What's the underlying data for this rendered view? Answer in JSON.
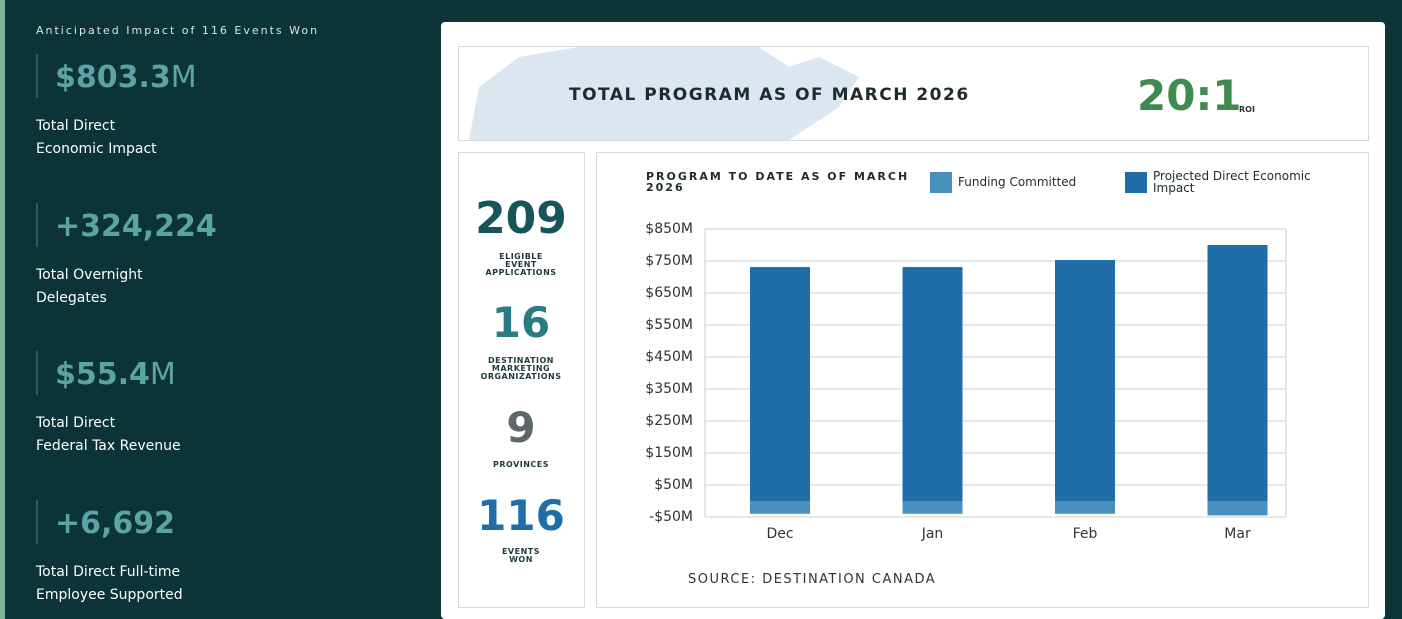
{
  "sidebar": {
    "heading": "Anticipated Impact of 116 Events Won",
    "stats": [
      {
        "value": "$803.3",
        "unit": "M",
        "label": [
          "Total Direct",
          "Economic Impact"
        ]
      },
      {
        "value": "+324,224",
        "label": [
          "Total Overnight",
          "Delegates"
        ]
      },
      {
        "value": "$55.4",
        "unit": "M",
        "label": [
          "Total Direct",
          "Federal Tax Revenue"
        ]
      },
      {
        "value": "+6,692",
        "label": [
          "Total Direct Full-time",
          "Employee Supported"
        ]
      }
    ]
  },
  "header": {
    "title": "TOTAL PROGRAM AS OF MARCH 2026",
    "ratio": "20:1",
    "ratio_label": "ROI"
  },
  "counts": [
    {
      "value": 209,
      "label": [
        "ELIGIBLE",
        "EVENT",
        "APPLICATIONS"
      ],
      "color": "#15555b"
    },
    {
      "value": 16,
      "label": [
        "DESTINATION",
        "MARKETING",
        "ORGANIZATIONS"
      ],
      "color": "#2b7b84"
    },
    {
      "value": 9,
      "label": [
        "PROVINCES"
      ],
      "color": "#5d6767"
    },
    {
      "value": 116,
      "label": [
        "EVENTS",
        "WON"
      ],
      "color": "#1f6ea8"
    }
  ],
  "chart_data": {
    "type": "bar",
    "stacked": true,
    "title": "PROGRAM TO DATE AS OF MARCH 2026",
    "source": "SOURCE: DESTINATION CANADA",
    "categories": [
      "Dec",
      "Jan",
      "Feb",
      "Mar"
    ],
    "series": [
      {
        "name": "Funding Committed",
        "color": "#4a90bf",
        "values": [
          -40,
          -40,
          -40,
          -45
        ]
      },
      {
        "name": "Projected Direct Economic Impact",
        "color": "#1f6ea8",
        "values": [
          731,
          731,
          753,
          800
        ]
      }
    ],
    "ylim": [
      -50,
      850
    ],
    "yticks": [
      {
        "value": -50,
        "label": "-$50M"
      },
      {
        "value": 50,
        "label": "$50M"
      },
      {
        "value": 150,
        "label": "$150M"
      },
      {
        "value": 250,
        "label": "$250M"
      },
      {
        "value": 350,
        "label": "$350M"
      },
      {
        "value": 450,
        "label": "$450M"
      },
      {
        "value": 550,
        "label": "$550M"
      },
      {
        "value": 650,
        "label": "$650M"
      },
      {
        "value": 750,
        "label": "$750M"
      },
      {
        "value": 850,
        "label": "$850M"
      }
    ],
    "grid": true
  }
}
